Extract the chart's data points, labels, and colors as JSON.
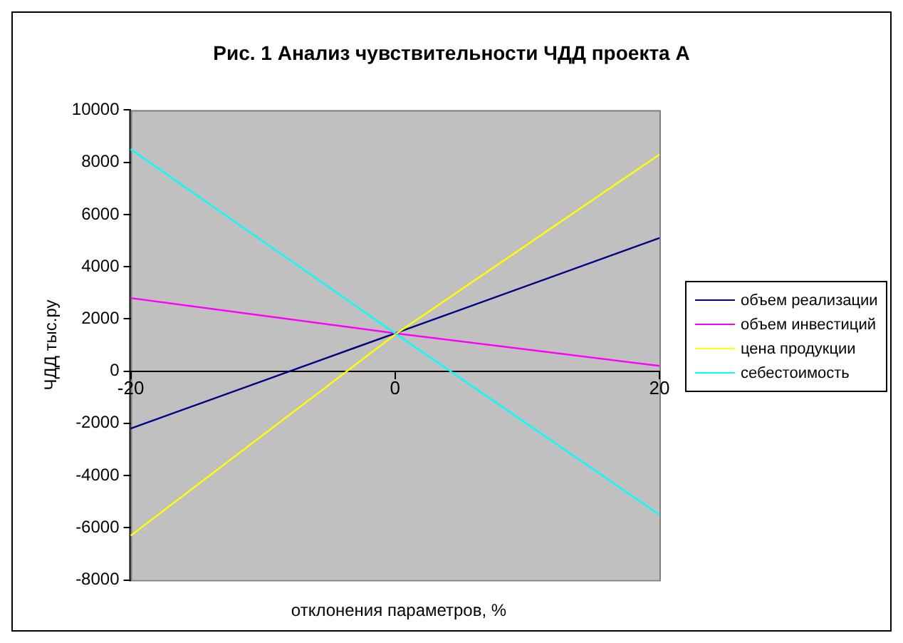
{
  "chart_data": {
    "type": "line",
    "title": "Рис. 1 Анализ чувствительности ЧДД проекта А",
    "xlabel": "отклонения параметров, %",
    "ylabel": "ЧДД тыс.ру",
    "x": [
      -20,
      0,
      20
    ],
    "xlim": [
      -20,
      20
    ],
    "xticks": [
      -20,
      0,
      20
    ],
    "ylim": [
      -8000,
      10000
    ],
    "yticks": [
      -8000,
      -6000,
      -4000,
      -2000,
      0,
      2000,
      4000,
      6000,
      8000,
      10000
    ],
    "grid": false,
    "legend": "right",
    "marker": "none",
    "line_style": "solid",
    "series": [
      {
        "name": "объем реализации",
        "color": "#000080",
        "values": [
          -2200,
          1450,
          5100
        ]
      },
      {
        "name": "объем инвестиций",
        "color": "#ff00ff",
        "values": [
          2800,
          1450,
          200
        ]
      },
      {
        "name": "цена продукции",
        "color": "#ffff00",
        "values": [
          -6300,
          1400,
          8300
        ]
      },
      {
        "name": "себестоимость",
        "color": "#00ffff",
        "values": [
          8500,
          1450,
          -5500
        ]
      }
    ]
  }
}
